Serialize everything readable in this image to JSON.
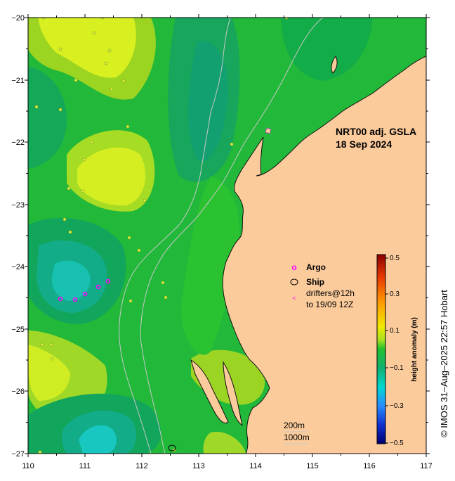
{
  "map": {
    "title_line1": "NRT00 adj. GSLA",
    "title_line2": "18 Sep 2024",
    "x_ticks": [
      "110",
      "111",
      "112",
      "113",
      "114",
      "115",
      "116",
      "117"
    ],
    "y_ticks": [
      "−20",
      "−21",
      "−22",
      "−23",
      "−24",
      "−25",
      "−26",
      "−27"
    ],
    "land_color": "#fbcb9c",
    "ocean_base_color": "#22b83a"
  },
  "legend": {
    "argo_symbol": "o",
    "argo_label": "Argo",
    "ship_label": "Ship",
    "drifter_symbol": "<",
    "drifter_line1": "drifters@12h",
    "drifter_line2": "to 19/09 12Z",
    "argo_color": "#ff00ff"
  },
  "colorbar": {
    "title": "height anomaly (m)",
    "tick_labels": [
      "0.5",
      "0.3",
      "0.1",
      "−0.1",
      "−0.3",
      "−0.5"
    ]
  },
  "scale": {
    "contour_200": "200m",
    "contour_1000": "1000m"
  },
  "credit": "© IMOS 31–Aug–2025 22:57 Hobart"
}
